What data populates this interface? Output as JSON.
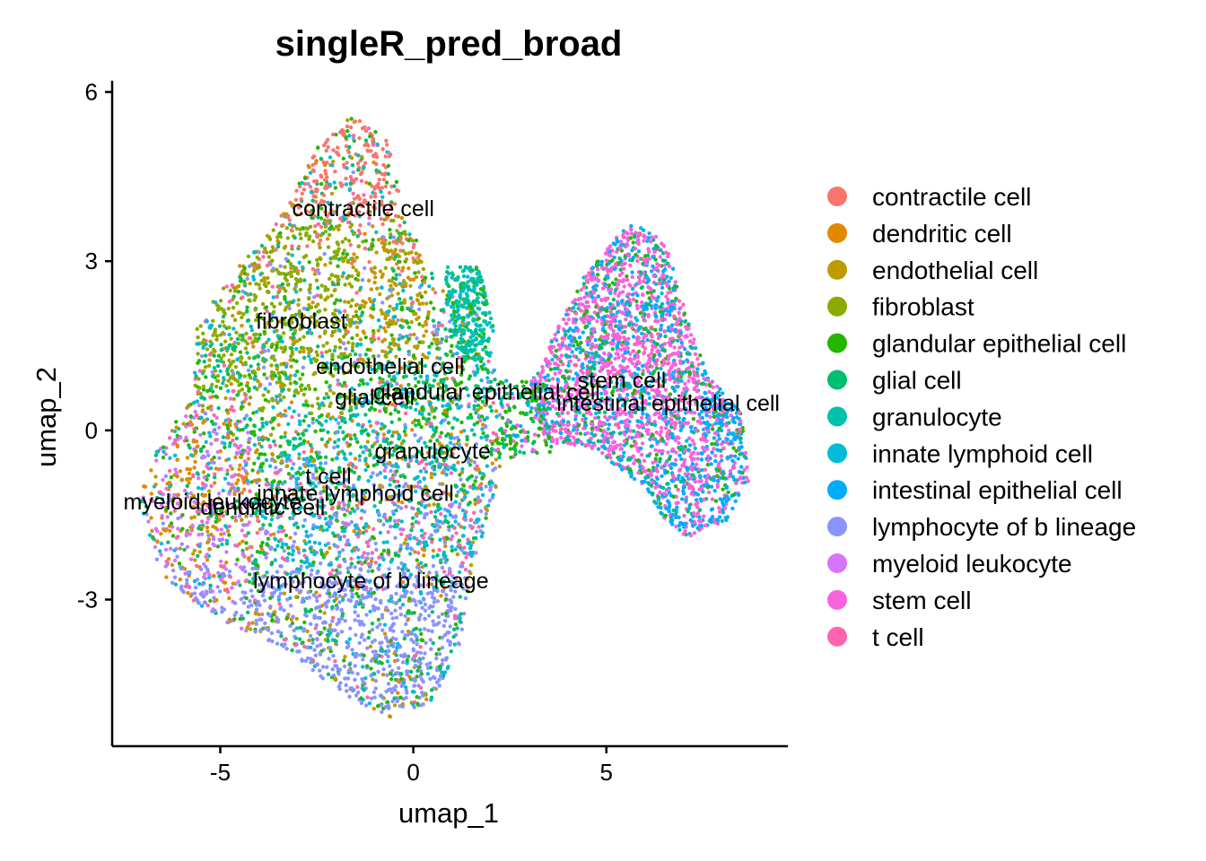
{
  "chart_data": {
    "type": "scatter",
    "title": "singleR_pred_broad",
    "xlabel": "umap_1",
    "ylabel": "umap_2",
    "xlim": [
      -7.8,
      9.7
    ],
    "ylim": [
      -5.6,
      6.2
    ],
    "x_ticks": [
      {
        "value": -5,
        "label": "-5"
      },
      {
        "value": 0,
        "label": "0"
      },
      {
        "value": 5,
        "label": "5"
      }
    ],
    "y_ticks": [
      {
        "value": -3,
        "label": "-3"
      },
      {
        "value": 0,
        "label": "0"
      },
      {
        "value": 3,
        "label": "3"
      },
      {
        "value": 6,
        "label": "6"
      }
    ],
    "grid": false,
    "legend_position": "right",
    "categories": [
      {
        "name": "contractile cell",
        "color": "#F8766D"
      },
      {
        "name": "dendritic cell",
        "color": "#E18A00"
      },
      {
        "name": "endothelial cell",
        "color": "#BE9C00"
      },
      {
        "name": "fibroblast",
        "color": "#8CAB00"
      },
      {
        "name": "glandular epithelial cell",
        "color": "#24B700"
      },
      {
        "name": "glial cell",
        "color": "#00BE70"
      },
      {
        "name": "granulocyte",
        "color": "#00C1AB"
      },
      {
        "name": "innate lymphoid cell",
        "color": "#00BBDA"
      },
      {
        "name": "intestinal epithelial cell",
        "color": "#00ACFC"
      },
      {
        "name": "lymphocyte of b lineage",
        "color": "#8B93FF"
      },
      {
        "name": "myeloid leukocyte",
        "color": "#D575FE"
      },
      {
        "name": "stem cell",
        "color": "#F962DD"
      },
      {
        "name": "t cell",
        "color": "#FF65AC"
      }
    ],
    "cluster_labels": [
      {
        "text": "contractile cell",
        "x": -1.3,
        "y": 3.8
      },
      {
        "text": "fibroblast",
        "x": -2.9,
        "y": 1.8
      },
      {
        "text": "endothelial cell",
        "x": -0.6,
        "y": 1.0
      },
      {
        "text": "glial cell",
        "x": -1.0,
        "y": 0.45
      },
      {
        "text": "glandular epithelial cell",
        "x": 1.9,
        "y": 0.55
      },
      {
        "text": "stem cell",
        "x": 5.4,
        "y": 0.75
      },
      {
        "text": "intestinal epithelial cell",
        "x": 6.6,
        "y": 0.35
      },
      {
        "text": "granulocyte",
        "x": 0.5,
        "y": -0.5
      },
      {
        "text": "t cell",
        "x": -2.2,
        "y": -0.95
      },
      {
        "text": "innate lymphoid cell",
        "x": -1.5,
        "y": -1.25
      },
      {
        "text": "myeloid leukocyte",
        "x": -5.2,
        "y": -1.4
      },
      {
        "text": "dendritic cell",
        "x": -3.9,
        "y": -1.5
      },
      {
        "text": "lymphocyte of b lineage",
        "x": -1.1,
        "y": -2.8
      }
    ]
  }
}
